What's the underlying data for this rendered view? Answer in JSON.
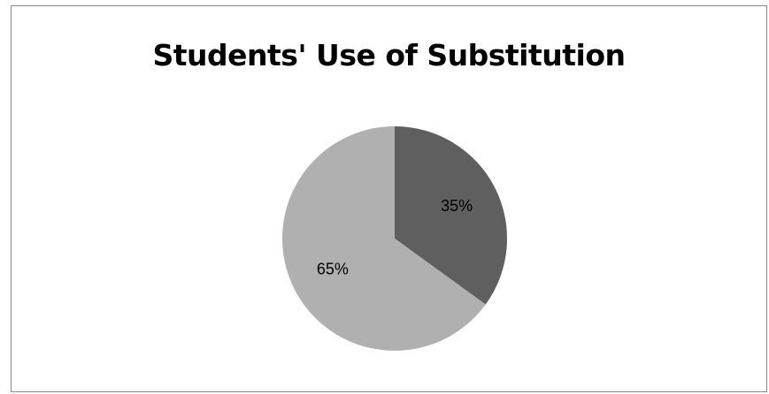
{
  "chart_data": {
    "type": "pie",
    "title": "Students' Use of Substitution",
    "slices": [
      {
        "value": 35,
        "label": "35%",
        "color": "#5f5f5f"
      },
      {
        "value": 65,
        "label": "65%",
        "color": "#b0b0b0"
      }
    ],
    "start_angle_deg": 0,
    "direction": "clockwise",
    "legend": "none"
  }
}
